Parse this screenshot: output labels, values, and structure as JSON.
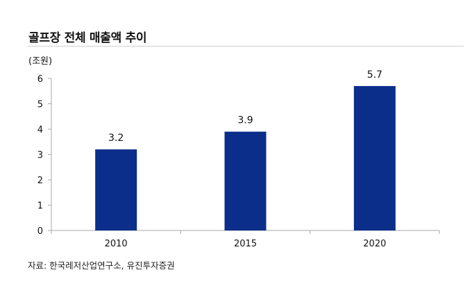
{
  "title": "골프장 전체 매출액 추이",
  "source": "자료: 한국레저산업연구소, 유진투자증권",
  "colors": {
    "bar": "#0b2e8a",
    "axis": "#a8a8a8",
    "text": "#111111"
  },
  "chart_data": {
    "type": "bar",
    "title": "골프장 전체 매출액 추이",
    "unit_label": "(조원)",
    "categories": [
      "2010",
      "2015",
      "2020"
    ],
    "values": [
      3.2,
      3.9,
      5.7
    ],
    "data_labels": [
      "3.2",
      "3.9",
      "5.7"
    ],
    "ylim": [
      0,
      6
    ],
    "yticks": [
      0,
      1,
      2,
      3,
      4,
      5,
      6
    ],
    "grid": false,
    "legend": "none"
  }
}
